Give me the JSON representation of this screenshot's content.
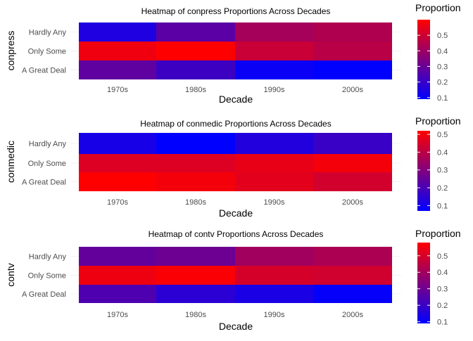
{
  "chart_data": [
    {
      "type": "heatmap",
      "title": "Heatmap of conpress Proportions Across Decades",
      "xlabel": "Decade",
      "ylabel": "conpress",
      "x": [
        "1970s",
        "1980s",
        "1990s",
        "2000s"
      ],
      "y": [
        "Hardly Any",
        "Only Some",
        "A Great Deal"
      ],
      "values": [
        [
          0.15,
          0.27,
          0.42,
          0.44
        ],
        [
          0.57,
          0.6,
          0.49,
          0.46
        ],
        [
          0.28,
          0.21,
          0.11,
          0.09
        ]
      ],
      "legend_title": "Proportion",
      "legend_ticks": [
        0.1,
        0.2,
        0.3,
        0.4,
        0.5
      ],
      "color_range": [
        0.09,
        0.6
      ],
      "colors": {
        "low": "#0000ff",
        "high": "#ff0000"
      }
    },
    {
      "type": "heatmap",
      "title": "Heatmap of conmedic Proportions Across Decades",
      "xlabel": "Decade",
      "ylabel": "conmedic",
      "x": [
        "1970s",
        "1980s",
        "1990s",
        "2000s"
      ],
      "y": [
        "Hardly Any",
        "Only Some",
        "A Great Deal"
      ],
      "values": [
        [
          0.11,
          0.07,
          0.13,
          0.17
        ],
        [
          0.46,
          0.46,
          0.48,
          0.5
        ],
        [
          0.52,
          0.5,
          0.47,
          0.44
        ]
      ],
      "legend_title": "Proportion",
      "legend_ticks": [
        0.1,
        0.2,
        0.3,
        0.4,
        0.5
      ],
      "color_range": [
        0.07,
        0.52
      ],
      "colors": {
        "low": "#0000ff",
        "high": "#ff0000"
      }
    },
    {
      "type": "heatmap",
      "title": "Heatmap of contv Proportions Across Decades",
      "xlabel": "Decade",
      "ylabel": "contv",
      "x": [
        "1970s",
        "1980s",
        "1990s",
        "2000s"
      ],
      "y": [
        "Hardly Any",
        "Only Some",
        "A Great Deal"
      ],
      "values": [
        [
          0.28,
          0.3,
          0.4,
          0.42
        ],
        [
          0.55,
          0.57,
          0.5,
          0.49
        ],
        [
          0.24,
          0.17,
          0.14,
          0.1
        ]
      ],
      "legend_title": "Proportion",
      "legend_ticks": [
        0.1,
        0.2,
        0.3,
        0.4,
        0.5
      ],
      "color_range": [
        0.09,
        0.58
      ],
      "colors": {
        "low": "#0000ff",
        "high": "#ff0000"
      }
    }
  ]
}
